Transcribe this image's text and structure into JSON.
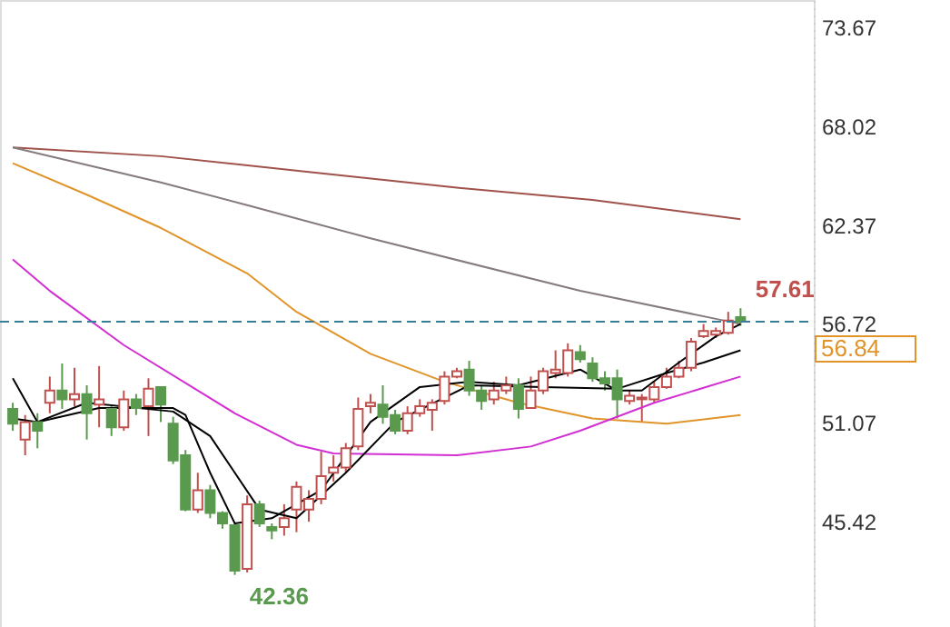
{
  "chart_data": {
    "type": "candlestick",
    "categories": [
      null,
      null,
      null,
      null,
      null,
      null,
      null,
      null,
      null,
      null,
      null,
      null,
      null,
      null,
      null,
      null,
      null,
      null,
      null,
      null,
      null,
      null,
      null,
      null,
      null,
      null,
      null,
      null,
      null,
      null,
      null,
      null,
      null,
      null,
      null,
      null,
      null,
      null,
      null,
      null,
      null,
      null,
      null,
      null,
      null,
      null,
      null,
      null,
      null,
      null,
      null,
      null,
      null,
      null,
      null,
      null,
      null,
      null,
      null,
      null
    ],
    "ohlc": [
      [
        51.85,
        52.2,
        50.6,
        51.0
      ],
      [
        50.1,
        51.5,
        49.2,
        51.1
      ],
      [
        51.1,
        51.6,
        49.6,
        50.6
      ],
      [
        52.2,
        53.7,
        51.6,
        52.9
      ],
      [
        52.9,
        54.45,
        51.85,
        52.4
      ],
      [
        52.4,
        54.2,
        52.0,
        52.7
      ],
      [
        52.7,
        53.2,
        50.1,
        51.6
      ],
      [
        52.1,
        54.3,
        50.8,
        52.4
      ],
      [
        51.85,
        52.0,
        50.3,
        50.8
      ],
      [
        50.8,
        52.9,
        50.6,
        52.4
      ],
      [
        52.4,
        52.7,
        51.5,
        51.9
      ],
      [
        52.0,
        53.6,
        50.3,
        53.0
      ],
      [
        53.1,
        53.1,
        51.1,
        52.1
      ],
      [
        51.0,
        51.4,
        48.7,
        48.9
      ],
      [
        49.2,
        49.5,
        46.0,
        46.1
      ],
      [
        46.1,
        48.2,
        45.9,
        47.2
      ],
      [
        47.2,
        47.5,
        45.6,
        45.9
      ],
      [
        45.9,
        46.0,
        45.0,
        45.3
      ],
      [
        45.2,
        45.3,
        42.36,
        42.6
      ],
      [
        42.7,
        46.9,
        42.5,
        46.4
      ],
      [
        46.4,
        46.6,
        45.1,
        45.3
      ],
      [
        45.1,
        45.3,
        44.4,
        44.9
      ],
      [
        45.1,
        46.4,
        44.6,
        45.6
      ],
      [
        46.1,
        47.7,
        44.8,
        47.4
      ],
      [
        46.1,
        47.2,
        45.4,
        46.7
      ],
      [
        46.7,
        49.4,
        46.4,
        48.0
      ],
      [
        48.2,
        49.2,
        47.7,
        48.5
      ],
      [
        48.5,
        49.9,
        48.2,
        49.6
      ],
      [
        49.7,
        52.5,
        49.5,
        51.85
      ],
      [
        52.0,
        52.7,
        51.6,
        52.2
      ],
      [
        52.1,
        53.2,
        51.0,
        51.4
      ],
      [
        51.5,
        51.8,
        50.4,
        50.6
      ],
      [
        50.6,
        52.0,
        50.4,
        51.6
      ],
      [
        51.6,
        52.4,
        51.4,
        52.0
      ],
      [
        51.8,
        52.4,
        50.6,
        52.2
      ],
      [
        52.3,
        54.0,
        52.1,
        53.7
      ],
      [
        53.7,
        54.2,
        53.6,
        54.0
      ],
      [
        54.1,
        54.6,
        52.6,
        52.9
      ],
      [
        52.9,
        53.2,
        51.8,
        52.3
      ],
      [
        52.4,
        53.4,
        52.1,
        52.9
      ],
      [
        52.9,
        53.7,
        52.7,
        53.2
      ],
      [
        53.2,
        53.6,
        51.3,
        51.85
      ],
      [
        51.9,
        53.7,
        51.85,
        52.9
      ],
      [
        52.9,
        54.2,
        52.7,
        54.0
      ],
      [
        53.9,
        55.2,
        53.6,
        54.1
      ],
      [
        53.9,
        55.6,
        53.7,
        55.2
      ],
      [
        55.1,
        55.5,
        54.5,
        54.7
      ],
      [
        54.45,
        54.8,
        53.4,
        53.6
      ],
      [
        53.6,
        54.0,
        52.9,
        53.3
      ],
      [
        53.6,
        54.1,
        51.3,
        52.4
      ],
      [
        52.3,
        52.9,
        52.1,
        52.6
      ],
      [
        52.4,
        52.7,
        51.1,
        52.5
      ],
      [
        52.4,
        53.4,
        52.2,
        53.1
      ],
      [
        53.1,
        54.2,
        53.0,
        53.7
      ],
      [
        53.7,
        54.6,
        53.6,
        54.2
      ],
      [
        54.2,
        55.9,
        54.0,
        55.7
      ],
      [
        56.0,
        56.7,
        55.9,
        56.3
      ],
      [
        56.1,
        56.5,
        55.9,
        56.3
      ],
      [
        56.2,
        57.4,
        56.1,
        56.9
      ],
      [
        57.1,
        57.61,
        56.6,
        56.84
      ]
    ],
    "colors": [
      "#5a9a4e",
      "#c0504d",
      "#5a9a4e",
      "#c0504d",
      "#5a9a4e",
      "#c0504d",
      "#5a9a4e",
      "#c0504d",
      "#5a9a4e",
      "#c0504d",
      "#5a9a4e",
      "#c0504d",
      "#5a9a4e",
      "#5a9a4e",
      "#5a9a4e",
      "#c0504d",
      "#5a9a4e",
      "#5a9a4e",
      "#5a9a4e",
      "#c0504d",
      "#5a9a4e",
      "#5a9a4e",
      "#c0504d",
      "#c0504d",
      "#c0504d",
      "#c0504d",
      "#c0504d",
      "#c0504d",
      "#c0504d",
      "#c0504d",
      "#5a9a4e",
      "#5a9a4e",
      "#c0504d",
      "#c0504d",
      "#c0504d",
      "#c0504d",
      "#c0504d",
      "#5a9a4e",
      "#5a9a4e",
      "#c0504d",
      "#c0504d",
      "#5a9a4e",
      "#c0504d",
      "#c0504d",
      "#c0504d",
      "#c0504d",
      "#5a9a4e",
      "#5a9a4e",
      "#5a9a4e",
      "#5a9a4e",
      "#c0504d",
      "#c0504d",
      "#c0504d",
      "#c0504d",
      "#c0504d",
      "#c0504d",
      "#c0504d",
      "#c0504d",
      "#c0504d",
      "#5a9a4e"
    ],
    "series": [
      {
        "type": "line",
        "color": "#a0524a",
        "values": [
          66.8,
          null,
          null,
          null,
          null,
          null,
          null,
          null,
          null,
          null,
          null,
          null,
          66.3,
          null,
          null,
          null,
          null,
          null,
          null,
          null,
          null,
          null,
          null,
          null,
          65.4,
          null,
          null,
          null,
          null,
          null,
          null,
          null,
          null,
          null,
          null,
          null,
          64.5,
          null,
          null,
          null,
          null,
          null,
          null,
          null,
          null,
          null,
          null,
          63.8,
          null,
          null,
          null,
          null,
          null,
          null,
          null,
          null,
          null,
          null,
          null,
          62.7
        ]
      },
      {
        "type": "line",
        "color": "#857a7c",
        "values": [
          66.8,
          null,
          null,
          null,
          null,
          null,
          null,
          null,
          null,
          null,
          null,
          null,
          64.8,
          null,
          null,
          null,
          null,
          null,
          null,
          63.5,
          null,
          null,
          null,
          null,
          null,
          null,
          null,
          null,
          null,
          61.6,
          null,
          null,
          null,
          null,
          null,
          null,
          null,
          null,
          null,
          null,
          null,
          null,
          null,
          null,
          null,
          null,
          58.6,
          null,
          null,
          null,
          null,
          null,
          null,
          null,
          null,
          null,
          null,
          57.0,
          null,
          56.7
        ]
      },
      {
        "type": "line",
        "color": "#e0942a",
        "values": [
          65.9,
          null,
          null,
          null,
          null,
          null,
          64.1,
          null,
          null,
          null,
          null,
          null,
          62.2,
          null,
          null,
          null,
          null,
          null,
          null,
          59.6,
          null,
          null,
          null,
          57.4,
          null,
          null,
          null,
          null,
          null,
          55.0,
          null,
          null,
          null,
          null,
          null,
          53.4,
          null,
          null,
          null,
          null,
          null,
          52.2,
          null,
          null,
          null,
          null,
          null,
          51.3,
          null,
          null,
          null,
          null,
          null,
          51.0,
          null,
          null,
          null,
          null,
          null,
          51.5
        ]
      },
      {
        "type": "line",
        "color": "#d22fd2",
        "values": [
          60.4,
          null,
          null,
          58.6,
          null,
          null,
          null,
          null,
          null,
          55.5,
          null,
          null,
          null,
          null,
          null,
          null,
          null,
          null,
          51.6,
          null,
          null,
          null,
          null,
          49.8,
          null,
          null,
          49.3,
          null,
          null,
          null,
          null,
          null,
          null,
          null,
          null,
          null,
          49.2,
          null,
          null,
          null,
          null,
          null,
          49.7,
          null,
          null,
          null,
          50.6,
          null,
          null,
          null,
          null,
          null,
          52.2,
          null,
          null,
          null,
          null,
          null,
          null,
          53.7
        ]
      },
      {
        "type": "line",
        "color": "#000000",
        "values": [
          51.3,
          null,
          51.1,
          null,
          null,
          null,
          null,
          51.9,
          null,
          null,
          null,
          null,
          null,
          51.9,
          51.5,
          null,
          48.2,
          null,
          45.3,
          null,
          null,
          45.6,
          null,
          null,
          null,
          47.2,
          null,
          null,
          null,
          51.1,
          null,
          null,
          null,
          53.1,
          null,
          null,
          null,
          53.4,
          null,
          null,
          null,
          53.2,
          null,
          null,
          null,
          null,
          54.1,
          null,
          null,
          52.9,
          null,
          52.9,
          null,
          null,
          54.5,
          null,
          null,
          56.0,
          null,
          56.7
        ]
      },
      {
        "type": "line",
        "color": "#000000",
        "values": [
          53.6,
          null,
          51.1,
          null,
          null,
          null,
          52.2,
          null,
          null,
          null,
          null,
          null,
          null,
          51.7,
          null,
          null,
          50.3,
          null,
          null,
          null,
          46.1,
          null,
          null,
          45.6,
          null,
          null,
          null,
          48.2,
          null,
          null,
          null,
          51.1,
          null,
          null,
          null,
          null,
          null,
          53.2,
          null,
          null,
          null,
          null,
          null,
          53.1,
          null,
          null,
          null,
          null,
          null,
          53.0,
          null,
          null,
          null,
          53.9,
          null,
          null,
          54.5,
          null,
          null,
          55.2
        ]
      }
    ],
    "ylim": [
      39.38,
      75.23
    ],
    "yticks": [
      73.67,
      68.02,
      62.37,
      56.72,
      51.07,
      45.42
    ],
    "ref_lines": [
      {
        "axis": "y",
        "value": 56.84,
        "label": "56.84",
        "color": "#3a7c9c",
        "line_style": "dashed"
      }
    ],
    "annotations": [
      "57.61",
      "42.36"
    ],
    "marker": "none",
    "line_style": "solid"
  }
}
